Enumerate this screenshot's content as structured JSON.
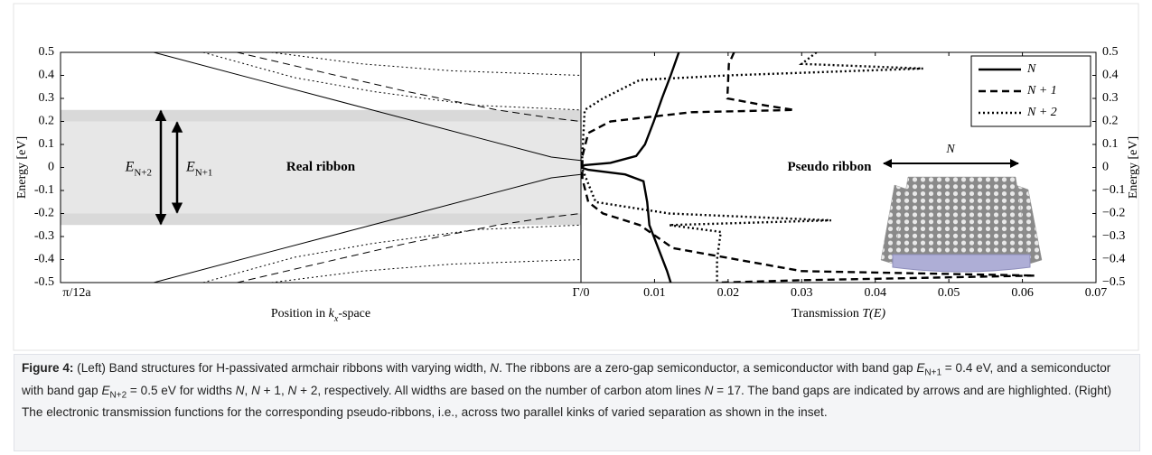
{
  "chart_data": [
    {
      "type": "line",
      "x_label": [
        {
          "text": "Position in "
        },
        {
          "text": "k",
          "style": "i"
        },
        {
          "text": "x",
          "style": "isub"
        },
        {
          "text": "-space"
        }
      ],
      "y_label": "Energy [eV]",
      "xlim": [
        0,
        1
      ],
      "xticks": [
        {
          "value": 0,
          "label": "π/12a"
        },
        {
          "value": 1,
          "label": "Γ/0"
        }
      ],
      "ylim": [
        -0.5,
        0.5
      ],
      "yticks": [
        0.5,
        0.4,
        0.3,
        0.2,
        0.1,
        0,
        -0.1,
        -0.2,
        -0.3,
        -0.4,
        -0.5
      ],
      "annotation": "Real ribbon",
      "band_gaps": [
        {
          "symbol": "E",
          "subscript": "N+2",
          "value": 0.5,
          "color": "#d9d9d9"
        },
        {
          "symbol": "E",
          "subscript": "N+1",
          "value": 0.4,
          "color": "#e7e7e7"
        }
      ],
      "series": [
        {
          "style": "solid",
          "color": "#000000",
          "bands": [
            {
              "x": [
                0.179,
                0.4,
                0.6,
                0.8,
                0.943,
                1
              ],
              "values": [
                0.5,
                0.368,
                0.249,
                0.13,
                0.045,
                0.03
              ]
            },
            {
              "x": [
                0.179,
                0.4,
                0.6,
                0.8,
                0.943,
                1
              ],
              "values": [
                -0.5,
                -0.368,
                -0.249,
                -0.13,
                -0.045,
                -0.03
              ]
            }
          ]
        },
        {
          "style": "dashed",
          "color": "#000000",
          "bands": [
            {
              "x": [
                0.339,
                0.491,
                0.665,
                0.839,
                0.943,
                1
              ],
              "values": [
                0.5,
                0.42,
                0.33,
                0.25,
                0.215,
                0.2
              ]
            },
            {
              "x": [
                0.339,
                0.491,
                0.665,
                0.839,
                0.943,
                1
              ],
              "values": [
                -0.5,
                -0.42,
                -0.33,
                -0.25,
                -0.215,
                -0.2
              ]
            }
          ]
        },
        {
          "style": "dotted",
          "color": "#000000",
          "bands": [
            {
              "x": [
                0.274,
                0.45,
                0.6,
                0.8,
                1
              ],
              "values": [
                0.5,
                0.39,
                0.33,
                0.27,
                0.25
              ]
            },
            {
              "x": [
                0.405,
                0.58,
                0.75,
                1
              ],
              "values": [
                0.5,
                0.45,
                0.42,
                0.4
              ]
            },
            {
              "x": [
                0.274,
                0.45,
                0.6,
                0.8,
                1
              ],
              "values": [
                -0.5,
                -0.39,
                -0.33,
                -0.27,
                -0.25
              ]
            },
            {
              "x": [
                0.405,
                0.58,
                0.75,
                1
              ],
              "values": [
                -0.5,
                -0.45,
                -0.42,
                -0.4
              ]
            }
          ]
        }
      ]
    },
    {
      "type": "line",
      "x_label": [
        {
          "text": "Transmission "
        },
        {
          "text": "T(E)",
          "style": "i"
        }
      ],
      "y2_label": "Energy [eV]",
      "xlim": [
        0,
        0.07
      ],
      "xticks": [
        0.01,
        0.02,
        0.03,
        0.04,
        0.05,
        0.06,
        0.07
      ],
      "y2lim": [
        -0.5,
        0.5
      ],
      "y2ticks": [
        0.5,
        0.4,
        0.3,
        0.2,
        0.1,
        0,
        {
          "value": -0.1,
          "label": "−0.1"
        },
        {
          "value": -0.2,
          "label": "−0.2"
        },
        {
          "value": -0.3,
          "label": "−0.3"
        },
        {
          "value": -0.4,
          "label": "−0.4"
        },
        {
          "value": -0.5,
          "label": "−0.5"
        }
      ],
      "annotation": "Pseudo ribbon",
      "inset_label": "N",
      "legend": "upper right",
      "series": [
        {
          "name": "N",
          "style": "solid",
          "color": "#000000",
          "axis": "y2",
          "x": [
            0.0133,
            0.0122,
            0.011,
            0.0099,
            0.0087,
            0.0075,
            0.004,
            0.0005,
            0.0,
            0.001,
            0.006,
            0.0085,
            0.009,
            0.0093,
            0.0105,
            0.0117,
            0.0122
          ],
          "values": [
            0.5,
            0.4,
            0.3,
            0.2,
            0.1,
            0.05,
            0.02,
            0.01,
            0,
            -0.01,
            -0.03,
            -0.06,
            -0.15,
            -0.25,
            -0.35,
            -0.45,
            -0.5
          ]
        },
        {
          "name": "N + 1",
          "style": "dashed",
          "color": "#000000",
          "axis": "y2",
          "x": [
            0.0208,
            0.0201,
            0.0199,
            0.025,
            0.029,
            0.015,
            0.004,
            0.001,
            0.0002,
            0.0002,
            0.001,
            0.003,
            0.008,
            0.0125,
            0.03,
            0.0617,
            0.03,
            0.019
          ],
          "values": [
            0.5,
            0.45,
            0.3,
            0.27,
            0.25,
            0.24,
            0.2,
            0.15,
            0.05,
            -0.05,
            -0.15,
            -0.2,
            -0.25,
            -0.35,
            -0.45,
            -0.47,
            -0.49,
            -0.5
          ]
        },
        {
          "name": "N + 2",
          "style": "dotted",
          "color": "#000000",
          "axis": "y2",
          "x": [
            0.032,
            0.03,
            0.0465,
            0.02,
            0.008,
            0.003,
            0.0005,
            0.0001,
            0.002,
            0.012,
            0.034,
            0.012,
            0.019,
            0.0185,
            0.0185
          ],
          "values": [
            0.5,
            0.45,
            0.43,
            0.4,
            0.38,
            0.3,
            0.25,
            0,
            -0.15,
            -0.2,
            -0.23,
            -0.25,
            -0.28,
            -0.4,
            -0.5
          ]
        }
      ]
    }
  ],
  "caption": {
    "label": "Figure 4:",
    "parts": [
      {
        "text": " (Left) Band structures for H-passivated armchair ribbons with varying width, "
      },
      {
        "text": "N",
        "style": "i"
      },
      {
        "text": ". The ribbons are a zero-gap semiconductor, a semiconductor with band gap "
      },
      {
        "text": "E",
        "style": "i"
      },
      {
        "text": "N+1",
        "style": "sub"
      },
      {
        "text": " = 0.4 eV, and a semiconductor with band gap "
      },
      {
        "text": "E",
        "style": "i"
      },
      {
        "text": "N+2",
        "style": "sub"
      },
      {
        "text": " = 0.5 eV for widths "
      },
      {
        "text": "N",
        "style": "i"
      },
      {
        "text": ", "
      },
      {
        "text": "N",
        "style": "i"
      },
      {
        "text": " + 1, "
      },
      {
        "text": "N",
        "style": "i"
      },
      {
        "text": " + 2, respectively. All widths are based on the number of carbon atom lines "
      },
      {
        "text": "N",
        "style": "i"
      },
      {
        "text": " = 17. The band gaps are indicated by arrows and are highlighted. (Right) The electronic transmission functions for the corresponding pseudo-ribbons, i.e., across two parallel kinks of varied separation as shown in the inset."
      }
    ]
  }
}
